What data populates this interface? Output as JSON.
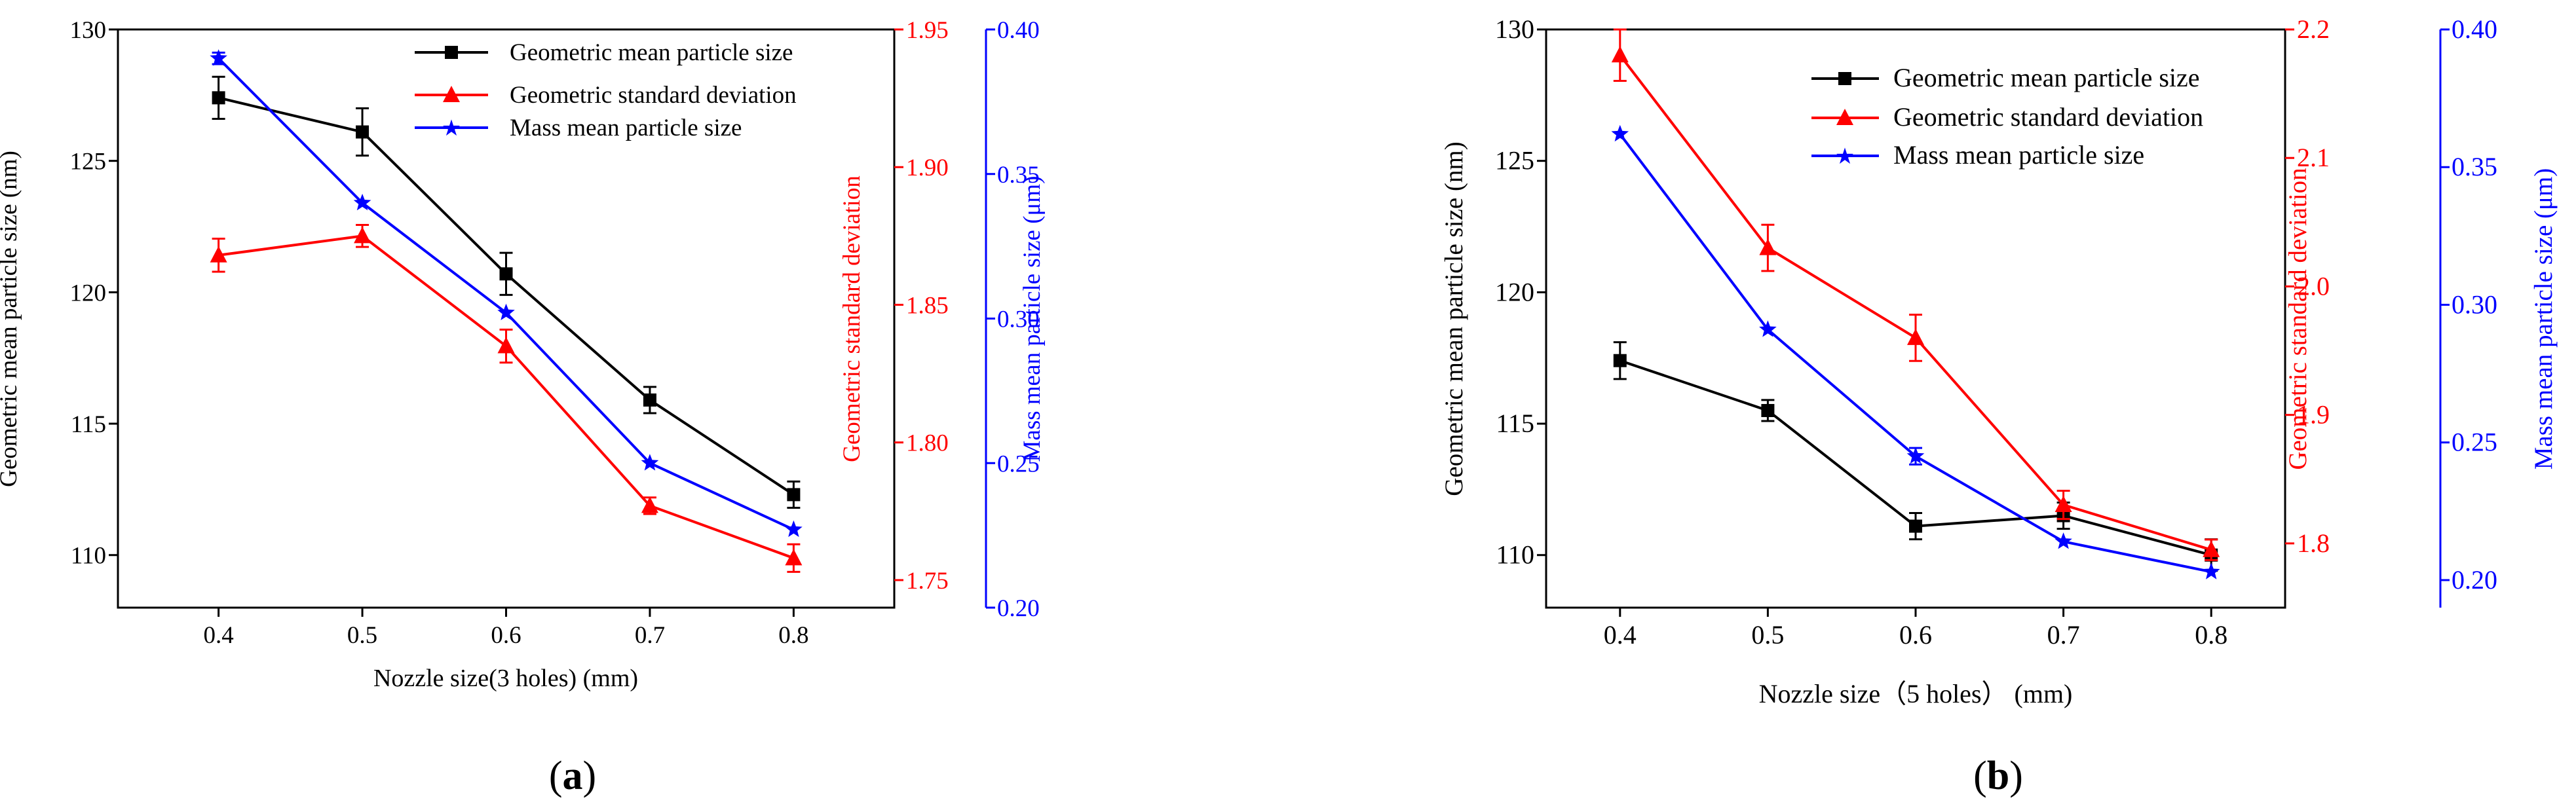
{
  "colors": {
    "black": "#000000",
    "red": "#ff0000",
    "blue": "#0000ff",
    "background": "#ffffff"
  },
  "chart_data": [
    {
      "type": "line",
      "panel_label": "(a)",
      "xlabel": "Nozzle size(3 holes) (mm)",
      "x": [
        0.4,
        0.5,
        0.6,
        0.7,
        0.8
      ],
      "x_ticks": [
        "0.4",
        "0.5",
        "0.6",
        "0.7",
        "0.8"
      ],
      "xlim": [
        0.33,
        0.87
      ],
      "legend_position": "top-right",
      "axes": {
        "left": {
          "label": "Geometric mean particle size (nm)",
          "ylim": [
            108,
            130
          ],
          "ticks": [
            "110",
            "115",
            "120",
            "125",
            "130"
          ],
          "tick_values": [
            110,
            115,
            120,
            125,
            130
          ]
        },
        "right1": {
          "label": "Geometric standard deviation",
          "ylim": [
            1.74,
            1.95
          ],
          "ticks": [
            "1.75",
            "1.80",
            "1.85",
            "1.90",
            "1.95"
          ],
          "tick_values": [
            1.75,
            1.8,
            1.85,
            1.9,
            1.95
          ]
        },
        "right2": {
          "label": "Mass mean particle size (μm)",
          "ylim": [
            0.2,
            0.4
          ],
          "ticks": [
            "0.20",
            "0.25",
            "0.30",
            "0.35",
            "0.40"
          ],
          "tick_values": [
            0.2,
            0.25,
            0.3,
            0.35,
            0.4
          ]
        }
      },
      "series": [
        {
          "name": "Geometric mean particle size",
          "axis": "left",
          "color": "#000000",
          "marker": "square",
          "values": [
            127.4,
            126.1,
            120.7,
            115.9,
            112.3
          ],
          "errors": [
            0.8,
            0.9,
            0.8,
            0.5,
            0.5
          ]
        },
        {
          "name": "Geometric standard deviation",
          "axis": "right1",
          "color": "#ff0000",
          "marker": "triangle",
          "values": [
            1.868,
            1.875,
            1.835,
            1.777,
            1.758
          ],
          "errors": [
            0.006,
            0.004,
            0.006,
            0.003,
            0.005
          ]
        },
        {
          "name": "Mass mean particle size",
          "axis": "right2",
          "color": "#0000ff",
          "marker": "star",
          "values": [
            0.39,
            0.34,
            0.302,
            0.25,
            0.227
          ],
          "errors": [
            0.002,
            0.0,
            0.0,
            0.0,
            0.0
          ]
        }
      ]
    },
    {
      "type": "line",
      "panel_label": "(b)",
      "xlabel": "Nozzle size（5 holes） (mm)",
      "x": [
        0.4,
        0.5,
        0.6,
        0.7,
        0.8
      ],
      "x_ticks": [
        "0.4",
        "0.5",
        "0.6",
        "0.7",
        "0.8"
      ],
      "xlim": [
        0.35,
        0.85
      ],
      "legend_position": "top-left",
      "axes": {
        "left": {
          "label": "Geometric mean particle size (nm)",
          "ylim": [
            108,
            130
          ],
          "ticks": [
            "110",
            "115",
            "120",
            "125",
            "130"
          ],
          "tick_values": [
            110,
            115,
            120,
            125,
            130
          ]
        },
        "right1": {
          "label": "Geometric standard deviation",
          "ylim": [
            1.75,
            2.2
          ],
          "ticks": [
            "1.8",
            "1.9",
            "2.0",
            "2.1",
            "2.2"
          ],
          "tick_values": [
            1.8,
            1.9,
            2.0,
            2.1,
            2.2
          ]
        },
        "right2": {
          "label": "Mass mean particle size (μm)",
          "ylim": [
            0.19,
            0.4
          ],
          "ticks": [
            "0.20",
            "0.25",
            "0.30",
            "0.35",
            "0.40"
          ],
          "tick_values": [
            0.2,
            0.25,
            0.3,
            0.35,
            0.4
          ]
        }
      },
      "series": [
        {
          "name": "Geometric mean particle size",
          "axis": "left",
          "color": "#000000",
          "marker": "square",
          "values": [
            117.4,
            115.5,
            111.1,
            111.5,
            110.0
          ],
          "errors": [
            0.7,
            0.4,
            0.5,
            0.5,
            0.6
          ]
        },
        {
          "name": "Geometric standard deviation",
          "axis": "right1",
          "color": "#ff0000",
          "marker": "triangle",
          "values": [
            2.18,
            2.03,
            1.96,
            1.83,
            1.795
          ],
          "errors": [
            0.02,
            0.018,
            0.018,
            0.011,
            0.008
          ]
        },
        {
          "name": "Mass mean particle size",
          "axis": "right2",
          "color": "#0000ff",
          "marker": "star",
          "values": [
            0.362,
            0.291,
            0.245,
            0.214,
            0.203
          ],
          "errors": [
            0.0,
            0.0,
            0.003,
            0.0,
            0.0
          ]
        }
      ]
    }
  ]
}
